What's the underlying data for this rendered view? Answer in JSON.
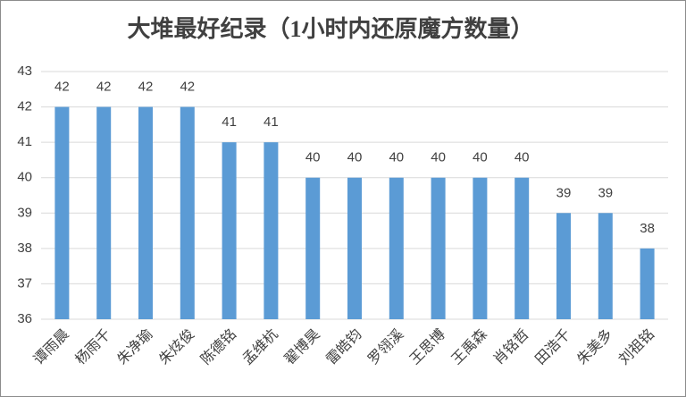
{
  "chart_data": {
    "type": "bar",
    "title": "大堆最好纪录（1小时内还原魔方数量）",
    "categories": [
      "谭雨晨",
      "杨雨千",
      "朱净瑜",
      "朱炫俊",
      "陈德铭",
      "孟维杭",
      "翟博昊",
      "雷皓钧",
      "罗翎溪",
      "王思博",
      "王禹森",
      "肖铭哲",
      "田浩千",
      "朱美多",
      "刘祖铭"
    ],
    "values": [
      42,
      42,
      42,
      42,
      41,
      41,
      40,
      40,
      40,
      40,
      40,
      40,
      39,
      39,
      38
    ],
    "color": "#5b9bd5",
    "ylim": [
      36,
      43
    ],
    "yticks": [
      36,
      37,
      38,
      39,
      40,
      41,
      42,
      43
    ],
    "grid": true
  }
}
